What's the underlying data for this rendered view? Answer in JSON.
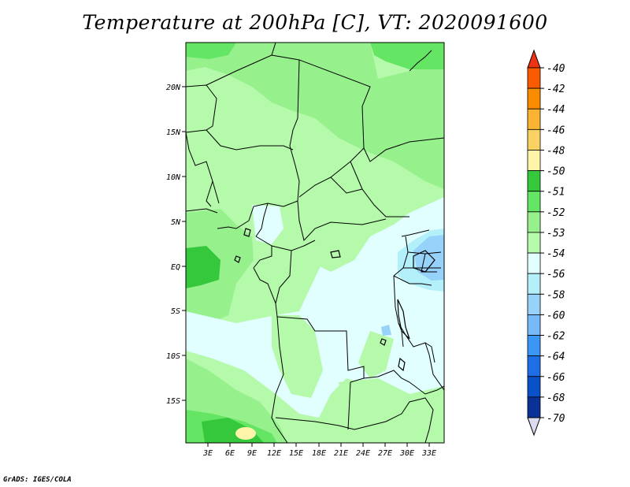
{
  "title": "Temperature at 200hPa [C], VT: 2020091600",
  "credit": "GrADS: IGES/COLA",
  "lat_axis": [
    "20N",
    "15N",
    "10N",
    "5N",
    "EQ",
    "5S",
    "10S",
    "15S"
  ],
  "lon_axis": [
    "3E",
    "6E",
    "9E",
    "12E",
    "15E",
    "18E",
    "21E",
    "24E",
    "27E",
    "30E",
    "33E"
  ],
  "colorbar": {
    "levels": [
      "-40",
      "-42",
      "-44",
      "-46",
      "-48",
      "-50",
      "-51",
      "-52",
      "-53",
      "-54",
      "-56",
      "-58",
      "-60",
      "-62",
      "-64",
      "-66",
      "-68",
      "-70"
    ],
    "colors": [
      "#f03214",
      "#fa5a00",
      "#fa8c00",
      "#fab432",
      "#fad264",
      "#fff5aa",
      "#36c83c",
      "#64e664",
      "#96f08c",
      "#b4faaa",
      "#e1ffff",
      "#b4f0fa",
      "#96d2fa",
      "#78b9fa",
      "#3c96f5",
      "#1e6ee6",
      "#0a50c8",
      "#0a3296",
      "#00006e",
      "#dcdcf0"
    ]
  },
  "map_colors": {
    "base": "#b4faaa",
    "mid": "#96f08c",
    "dark": "#64e664",
    "darkest": "#36c83c",
    "cold": "#e1ffff",
    "colder": "#b4f0fa",
    "coldest": "#96d2fa",
    "warm": "#fff5aa"
  }
}
